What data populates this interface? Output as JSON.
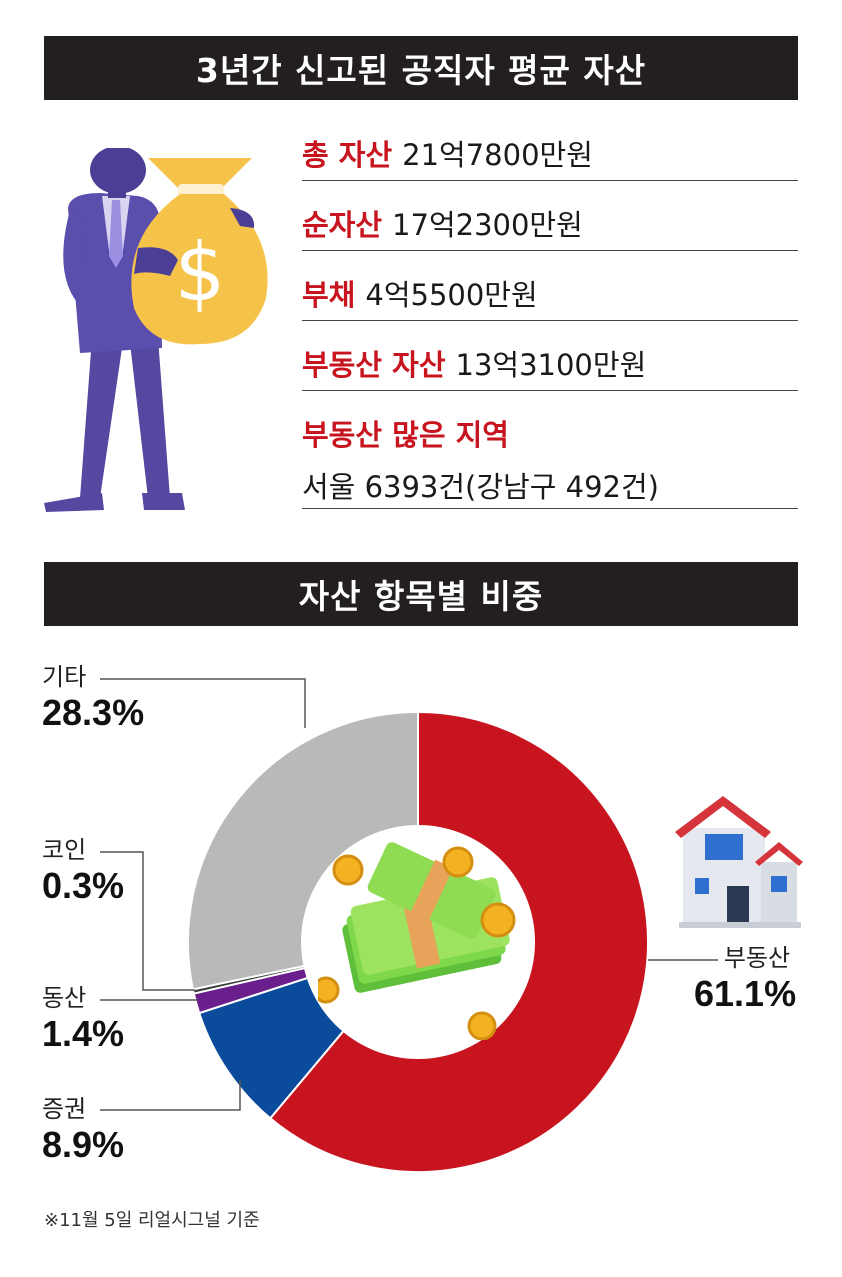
{
  "banner_top": "3년간 신고된 공직자 평균 자산",
  "stats": [
    {
      "label": "총 자산",
      "value": "21억7800만원"
    },
    {
      "label": "순자산",
      "value": "17억2300만원"
    },
    {
      "label": "부채",
      "value": "4억5500만원"
    },
    {
      "label": "부동산 자산",
      "value": "13억3100만원"
    },
    {
      "label": "부동산 많은 지역",
      "value": "서울 6393건(강남구 492건)"
    }
  ],
  "banner_chart": "자산 항목별 비중",
  "chart_data": {
    "type": "pie",
    "donut": true,
    "categories": [
      "부동산",
      "증권",
      "동산",
      "코인",
      "기타"
    ],
    "values": [
      61.1,
      8.9,
      1.4,
      0.3,
      28.3
    ],
    "value_labels": [
      "61.1%",
      "8.9%",
      "1.4%",
      "0.3%",
      "28.3%"
    ],
    "colors": [
      "#c8141e",
      "#0a4b9b",
      "#6a1f8c",
      "#3a3a3a",
      "#b9b9b9"
    ],
    "start_angle_deg": 0,
    "direction": "clockwise"
  },
  "footnote": "※11월 5일 리얼시그널 기준",
  "icons": [
    "businessman-with-money-bag-icon",
    "house-icon",
    "money-stack-coins-icon"
  ]
}
